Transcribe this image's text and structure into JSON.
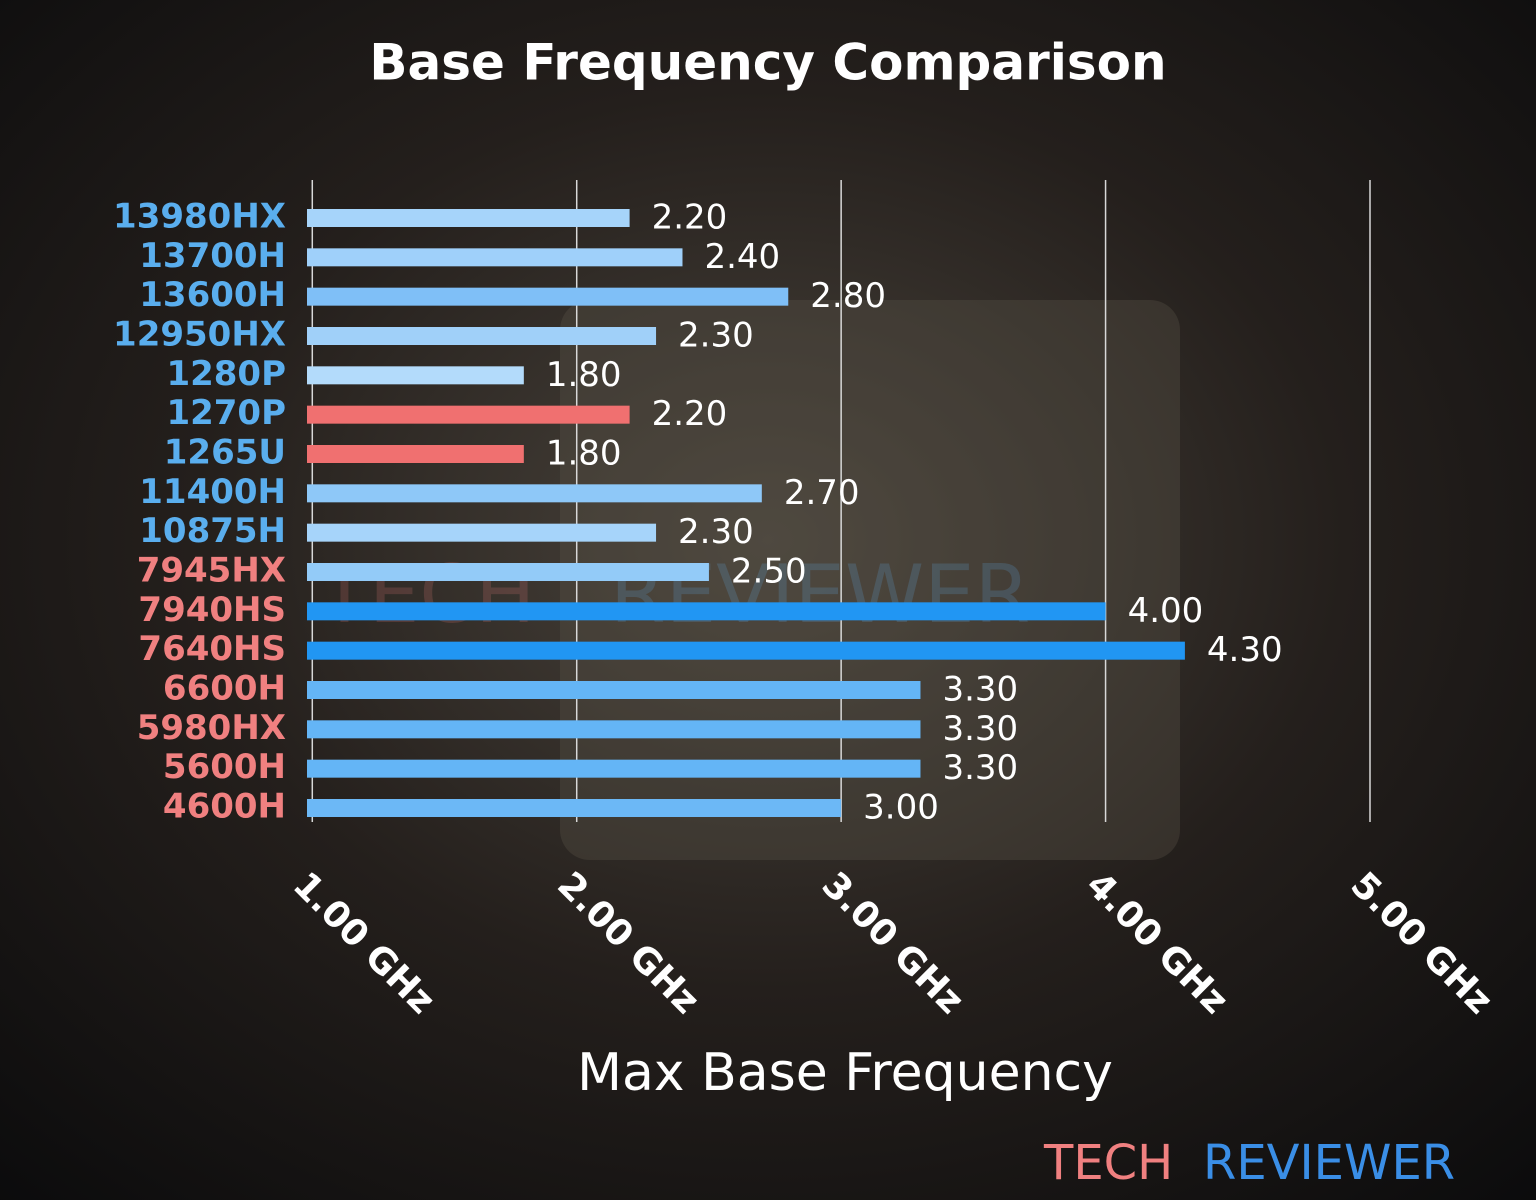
{
  "chart_data": {
    "type": "bar",
    "orientation": "horizontal",
    "title": "Base Frequency Comparison",
    "xlabel": "Max Base Frequency",
    "categories": [
      "13980HX",
      "13700H",
      "13600H",
      "12950HX",
      "1280P",
      "1270P",
      "1265U",
      "11400H",
      "10875H",
      "7945HX",
      "7940HS",
      "7640HS",
      "6600H",
      "5980HX",
      "5600H",
      "4600H"
    ],
    "values": [
      2.2,
      2.4,
      2.8,
      2.3,
      1.8,
      2.2,
      1.8,
      2.7,
      2.3,
      2.5,
      4.0,
      4.3,
      3.3,
      3.3,
      3.3,
      3.0
    ],
    "value_labels": [
      "2.20",
      "2.40",
      "2.80",
      "2.30",
      "1.80",
      "2.20",
      "1.80",
      "2.70",
      "2.30",
      "2.50",
      "4.00",
      "4.30",
      "3.30",
      "3.30",
      "3.30",
      "3.00"
    ],
    "colors": [
      "#a6d4fa",
      "#9fd0fa",
      "#7fbff7",
      "#a0d0f9",
      "#b3dbfb",
      "#f07070",
      "#f07070",
      "#8ec8f8",
      "#a6d4fa",
      "#93cbf8",
      "#2196f3",
      "#2196f3",
      "#64b5f6",
      "#64b5f6",
      "#64b5f6",
      "#6cb8f6"
    ],
    "label_colors": [
      "#5aaeee",
      "#5aaeee",
      "#5aaeee",
      "#5aaeee",
      "#5aaeee",
      "#5aaeee",
      "#5aaeee",
      "#5aaeee",
      "#5aaeee",
      "#f08080",
      "#f08080",
      "#f08080",
      "#f08080",
      "#f08080",
      "#f08080",
      "#f08080"
    ],
    "xlim": [
      0.98,
      5.0
    ],
    "xticks": [
      {
        "value": 1,
        "label": "1.00 GHz"
      },
      {
        "value": 2,
        "label": "2.00 GHz"
      },
      {
        "value": 3,
        "label": "3.00 GHz"
      },
      {
        "value": 4,
        "label": "4.00 GHz"
      },
      {
        "value": 5,
        "label": "5.00 GHz"
      }
    ],
    "grid": true,
    "logo": [
      "TECH",
      "REVIEWER"
    ]
  }
}
